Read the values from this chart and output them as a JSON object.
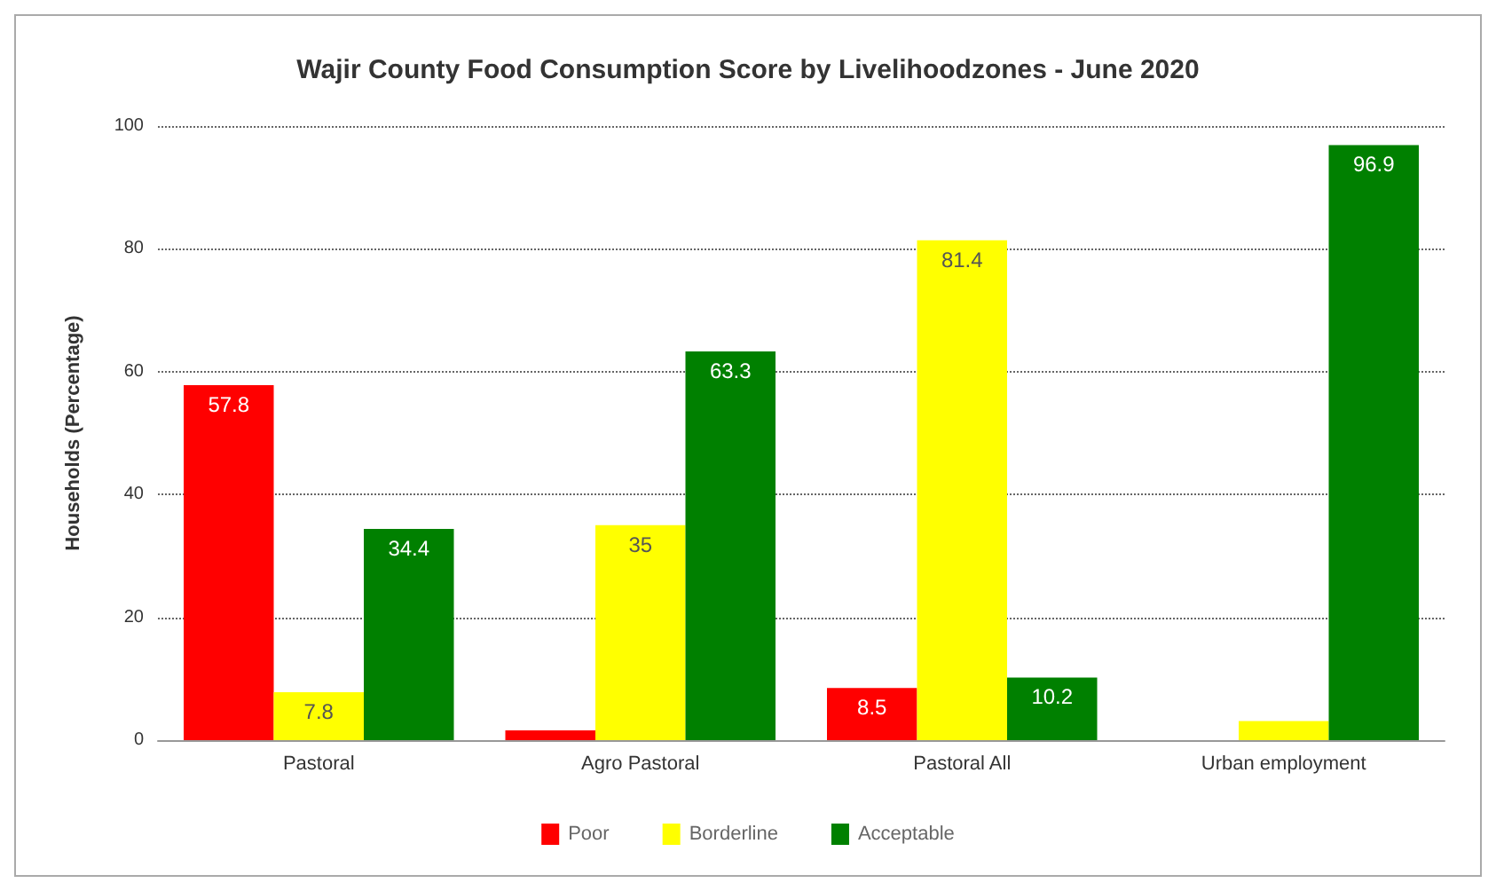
{
  "chart_data": {
    "type": "bar",
    "title": "Wajir County Food Consumption Score by Livelihoodzones - June 2020",
    "ylabel": "Households (Percentage)",
    "categories": [
      "Pastoral",
      "Agro Pastoral",
      "Pastoral All",
      "Urban employment"
    ],
    "series": [
      {
        "name": "Poor",
        "color": "#ff0000",
        "values": [
          57.8,
          1.6,
          8.5,
          0
        ],
        "value_labels": [
          "57.8",
          null,
          "8.5",
          null
        ]
      },
      {
        "name": "Borderline",
        "color": "#ffff00",
        "values": [
          7.8,
          35,
          81.4,
          3.1
        ],
        "value_labels": [
          "7.8",
          "35",
          "81.4",
          null
        ]
      },
      {
        "name": "Acceptable",
        "color": "#008000",
        "values": [
          34.4,
          63.3,
          10.2,
          96.9
        ],
        "value_labels": [
          "34.4",
          "63.3",
          "10.2",
          "96.9"
        ]
      }
    ],
    "ylim": [
      0,
      100
    ],
    "yticks": [
      0,
      20,
      40,
      60,
      80,
      100
    ],
    "grid": "y",
    "legend": "bottom"
  }
}
